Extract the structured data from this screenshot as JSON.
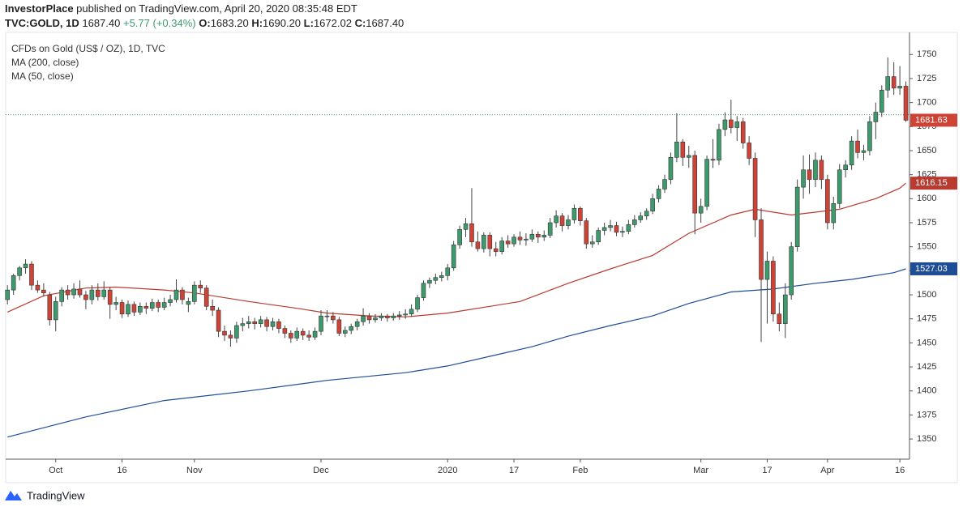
{
  "header": {
    "publisher": "InvestorPlace",
    "published": "published on TradingView.com, April 20, 2020 08:35:48 EDT",
    "symbol": "TVC:GOLD, 1D",
    "price": "1687.40",
    "change": "+5.77 (+0.34%)",
    "open_label": "O:",
    "open": "1683.20",
    "high_label": "H:",
    "high": "1690.20",
    "low_label": "L:",
    "low": "1672.02",
    "close_label": "C:",
    "close": "1687.40"
  },
  "footer": "TradingView",
  "chart_data": {
    "type": "candlestick",
    "title": "CFDs on Gold (US$ / OZ), 1D, TVC",
    "up_color": "#3e9a6c",
    "down_color": "#cf4337",
    "price_line": 1687.4,
    "xlim": [
      -0.3,
      149.6
    ],
    "ylim": [
      1329,
      1773
    ],
    "yticks": [
      1350,
      1375,
      1400,
      1425,
      1450,
      1475,
      1500,
      1525,
      1550,
      1575,
      1600,
      1625,
      1650,
      1675,
      1700,
      1725,
      1750
    ],
    "xticks": [
      {
        "value": 8,
        "label": "Oct"
      },
      {
        "value": 19,
        "label": "16"
      },
      {
        "value": 31,
        "label": "Nov"
      },
      {
        "value": 52,
        "label": "Dec"
      },
      {
        "value": 73,
        "label": "2020"
      },
      {
        "value": 84,
        "label": "17"
      },
      {
        "value": 95,
        "label": "Feb"
      },
      {
        "value": 115,
        "label": "Mar"
      },
      {
        "value": 126,
        "label": "17"
      },
      {
        "value": 136,
        "label": "Apr"
      },
      {
        "value": 148,
        "label": "16"
      }
    ],
    "ohlc": [
      [
        1495,
        1510,
        1490,
        1505
      ],
      [
        1505,
        1522,
        1500,
        1520
      ],
      [
        1520,
        1530,
        1515,
        1528
      ],
      [
        1528,
        1537,
        1522,
        1532
      ],
      [
        1532,
        1535,
        1505,
        1510
      ],
      [
        1510,
        1515,
        1502,
        1505
      ],
      [
        1505,
        1512,
        1498,
        1502
      ],
      [
        1500,
        1503,
        1468,
        1474
      ],
      [
        1474,
        1498,
        1462,
        1493
      ],
      [
        1493,
        1508,
        1488,
        1505
      ],
      [
        1505,
        1510,
        1495,
        1500
      ],
      [
        1500,
        1512,
        1496,
        1506
      ],
      [
        1506,
        1515,
        1497,
        1500
      ],
      [
        1500,
        1504,
        1485,
        1495
      ],
      [
        1495,
        1510,
        1490,
        1505
      ],
      [
        1505,
        1512,
        1494,
        1498
      ],
      [
        1498,
        1514,
        1495,
        1505
      ],
      [
        1505,
        1508,
        1475,
        1490
      ],
      [
        1490,
        1498,
        1484,
        1492
      ],
      [
        1492,
        1495,
        1476,
        1480
      ],
      [
        1480,
        1494,
        1477,
        1490
      ],
      [
        1490,
        1493,
        1478,
        1482
      ],
      [
        1482,
        1492,
        1479,
        1488
      ],
      [
        1488,
        1492,
        1480,
        1486
      ],
      [
        1486,
        1496,
        1483,
        1492
      ],
      [
        1492,
        1495,
        1482,
        1487
      ],
      [
        1487,
        1497,
        1484,
        1492
      ],
      [
        1492,
        1500,
        1488,
        1495
      ],
      [
        1495,
        1516,
        1492,
        1505
      ],
      [
        1505,
        1508,
        1490,
        1495
      ],
      [
        1490,
        1497,
        1482,
        1493
      ],
      [
        1493,
        1514,
        1490,
        1510
      ],
      [
        1510,
        1515,
        1502,
        1507
      ],
      [
        1507,
        1510,
        1484,
        1488
      ],
      [
        1488,
        1495,
        1478,
        1484
      ],
      [
        1484,
        1487,
        1456,
        1462
      ],
      [
        1462,
        1468,
        1452,
        1458
      ],
      [
        1458,
        1463,
        1446,
        1455
      ],
      [
        1455,
        1472,
        1450,
        1468
      ],
      [
        1468,
        1476,
        1462,
        1470
      ],
      [
        1470,
        1478,
        1465,
        1472
      ],
      [
        1472,
        1476,
        1464,
        1470
      ],
      [
        1470,
        1478,
        1466,
        1474
      ],
      [
        1474,
        1477,
        1462,
        1467
      ],
      [
        1467,
        1476,
        1463,
        1472
      ],
      [
        1472,
        1475,
        1460,
        1465
      ],
      [
        1465,
        1468,
        1455,
        1460
      ],
      [
        1460,
        1463,
        1450,
        1455
      ],
      [
        1455,
        1466,
        1452,
        1462
      ],
      [
        1462,
        1465,
        1453,
        1458
      ],
      [
        1458,
        1463,
        1452,
        1456
      ],
      [
        1456,
        1466,
        1453,
        1462
      ],
      [
        1462,
        1484,
        1458,
        1478
      ],
      [
        1478,
        1484,
        1472,
        1478
      ],
      [
        1478,
        1482,
        1470,
        1474
      ],
      [
        1474,
        1477,
        1457,
        1460
      ],
      [
        1460,
        1467,
        1456,
        1463
      ],
      [
        1463,
        1470,
        1459,
        1467
      ],
      [
        1467,
        1475,
        1463,
        1472
      ],
      [
        1472,
        1486,
        1468,
        1478
      ],
      [
        1478,
        1481,
        1470,
        1474
      ],
      [
        1474,
        1480,
        1471,
        1476
      ],
      [
        1476,
        1481,
        1473,
        1478
      ],
      [
        1478,
        1480,
        1472,
        1476
      ],
      [
        1476,
        1481,
        1473,
        1478
      ],
      [
        1478,
        1483,
        1474,
        1479
      ],
      [
        1479,
        1485,
        1475,
        1480
      ],
      [
        1480,
        1490,
        1477,
        1485
      ],
      [
        1485,
        1500,
        1482,
        1497
      ],
      [
        1497,
        1515,
        1494,
        1512
      ],
      [
        1512,
        1518,
        1507,
        1515
      ],
      [
        1515,
        1522,
        1511,
        1518
      ],
      [
        1518,
        1524,
        1514,
        1520
      ],
      [
        1520,
        1532,
        1515,
        1528
      ],
      [
        1528,
        1556,
        1525,
        1552
      ],
      [
        1552,
        1572,
        1548,
        1568
      ],
      [
        1568,
        1580,
        1560,
        1574
      ],
      [
        1574,
        1611,
        1550,
        1555
      ],
      [
        1555,
        1566,
        1545,
        1548
      ],
      [
        1548,
        1565,
        1544,
        1562
      ],
      [
        1562,
        1565,
        1540,
        1548
      ],
      [
        1548,
        1555,
        1540,
        1545
      ],
      [
        1545,
        1560,
        1542,
        1556
      ],
      [
        1556,
        1562,
        1549,
        1553
      ],
      [
        1553,
        1563,
        1550,
        1560
      ],
      [
        1560,
        1566,
        1552,
        1557
      ],
      [
        1557,
        1564,
        1551,
        1558
      ],
      [
        1558,
        1568,
        1555,
        1563
      ],
      [
        1563,
        1566,
        1554,
        1560
      ],
      [
        1560,
        1567,
        1556,
        1562
      ],
      [
        1562,
        1580,
        1559,
        1575
      ],
      [
        1575,
        1588,
        1570,
        1582
      ],
      [
        1582,
        1585,
        1566,
        1572
      ],
      [
        1572,
        1583,
        1568,
        1578
      ],
      [
        1578,
        1594,
        1574,
        1590
      ],
      [
        1590,
        1592,
        1572,
        1577
      ],
      [
        1577,
        1580,
        1548,
        1553
      ],
      [
        1553,
        1562,
        1549,
        1555
      ],
      [
        1555,
        1570,
        1552,
        1567
      ],
      [
        1567,
        1575,
        1562,
        1570
      ],
      [
        1570,
        1578,
        1566,
        1572
      ],
      [
        1572,
        1576,
        1561,
        1565
      ],
      [
        1565,
        1571,
        1560,
        1566
      ],
      [
        1566,
        1578,
        1563,
        1573
      ],
      [
        1573,
        1583,
        1570,
        1578
      ],
      [
        1578,
        1586,
        1575,
        1582
      ],
      [
        1582,
        1590,
        1578,
        1587
      ],
      [
        1587,
        1605,
        1584,
        1600
      ],
      [
        1600,
        1614,
        1596,
        1610
      ],
      [
        1610,
        1625,
        1606,
        1620
      ],
      [
        1620,
        1648,
        1615,
        1643
      ],
      [
        1643,
        1689,
        1638,
        1659
      ],
      [
        1659,
        1662,
        1634,
        1643
      ],
      [
        1643,
        1655,
        1632,
        1645
      ],
      [
        1645,
        1650,
        1563,
        1585
      ],
      [
        1585,
        1600,
        1575,
        1592
      ],
      [
        1592,
        1645,
        1588,
        1641
      ],
      [
        1641,
        1662,
        1632,
        1640
      ],
      [
        1640,
        1678,
        1635,
        1672
      ],
      [
        1672,
        1690,
        1665,
        1682
      ],
      [
        1682,
        1703,
        1668,
        1674
      ],
      [
        1674,
        1686,
        1660,
        1680
      ],
      [
        1680,
        1684,
        1652,
        1658
      ],
      [
        1658,
        1665,
        1635,
        1642
      ],
      [
        1642,
        1648,
        1560,
        1578
      ],
      [
        1578,
        1590,
        1451,
        1516
      ],
      [
        1516,
        1545,
        1470,
        1535
      ],
      [
        1535,
        1540,
        1472,
        1480
      ],
      [
        1480,
        1492,
        1462,
        1470
      ],
      [
        1470,
        1512,
        1455,
        1500
      ],
      [
        1500,
        1555,
        1495,
        1550
      ],
      [
        1550,
        1620,
        1545,
        1612
      ],
      [
        1612,
        1645,
        1600,
        1630
      ],
      [
        1630,
        1646,
        1605,
        1620
      ],
      [
        1620,
        1648,
        1612,
        1640
      ],
      [
        1640,
        1645,
        1610,
        1620
      ],
      [
        1620,
        1625,
        1568,
        1575
      ],
      [
        1575,
        1602,
        1568,
        1595
      ],
      [
        1595,
        1636,
        1590,
        1630
      ],
      [
        1630,
        1640,
        1622,
        1635
      ],
      [
        1635,
        1665,
        1630,
        1660
      ],
      [
        1660,
        1672,
        1642,
        1648
      ],
      [
        1648,
        1656,
        1640,
        1650
      ],
      [
        1650,
        1686,
        1645,
        1680
      ],
      [
        1680,
        1700,
        1662,
        1690
      ],
      [
        1690,
        1718,
        1685,
        1713
      ],
      [
        1713,
        1747,
        1705,
        1727
      ],
      [
        1727,
        1742,
        1708,
        1715
      ],
      [
        1715,
        1738,
        1708,
        1717
      ],
      [
        1717,
        1722,
        1680,
        1681.63
      ]
    ],
    "series": [
      {
        "name": "MA (200, close)",
        "color": "#1e4d96",
        "x": [
          0,
          13,
          26,
          40,
          53,
          66,
          73,
          80,
          87,
          93,
          100,
          107,
          113,
          120,
          127,
          134,
          140,
          147,
          149
        ],
        "values": [
          1352,
          1373,
          1390,
          1400,
          1411,
          1419,
          1426,
          1436,
          1446,
          1457,
          1468,
          1478,
          1491,
          1503,
          1506,
          1512,
          1516,
          1523,
          1527.03
        ]
      },
      {
        "name": "MA (50, close)",
        "color": "#b83a30",
        "x": [
          0,
          6,
          13,
          18,
          26,
          31,
          40,
          48,
          53,
          60,
          66,
          73,
          80,
          85,
          93,
          100,
          107,
          113,
          120,
          124,
          130,
          134,
          138,
          144,
          148,
          149
        ],
        "values": [
          1482,
          1499,
          1507,
          1508,
          1505,
          1502,
          1493,
          1486,
          1481,
          1478,
          1477,
          1481,
          1488,
          1493,
          1512,
          1527,
          1541,
          1564,
          1583,
          1589,
          1583,
          1586,
          1589,
          1600,
          1611,
          1616.15
        ]
      }
    ]
  }
}
